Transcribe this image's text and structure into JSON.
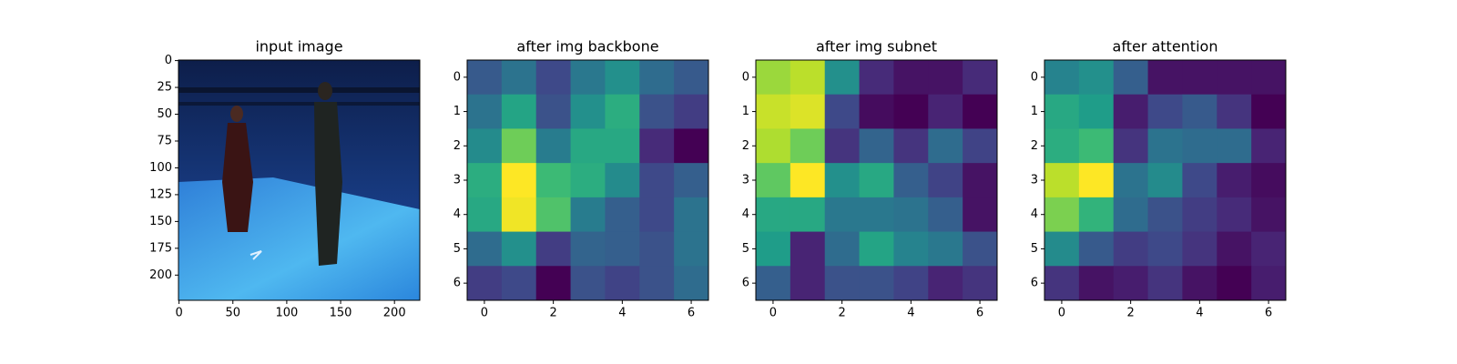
{
  "chart_data": [
    {
      "type": "image",
      "title": "input image",
      "xlim": [
        -0.5,
        223.5
      ],
      "ylim": [
        223.5,
        -0.5
      ],
      "xticks": [
        0,
        50,
        100,
        150,
        200
      ],
      "yticks": [
        0,
        25,
        50,
        75,
        100,
        125,
        150,
        175,
        200
      ]
    },
    {
      "type": "heatmap",
      "title": "after img backbone",
      "colormap": "viridis",
      "xlim": [
        -0.5,
        6.5
      ],
      "ylim": [
        6.5,
        -0.5
      ],
      "xticks": [
        0,
        2,
        4,
        6
      ],
      "yticks": [
        0,
        1,
        2,
        3,
        4,
        5,
        6
      ],
      "z": [
        [
          0.28,
          0.38,
          0.22,
          0.4,
          0.5,
          0.35,
          0.28
        ],
        [
          0.38,
          0.58,
          0.25,
          0.5,
          0.62,
          0.25,
          0.18
        ],
        [
          0.48,
          0.78,
          0.42,
          0.6,
          0.6,
          0.12,
          0.0
        ],
        [
          0.62,
          1.0,
          0.68,
          0.62,
          0.48,
          0.22,
          0.3
        ],
        [
          0.6,
          0.98,
          0.72,
          0.42,
          0.3,
          0.22,
          0.38
        ],
        [
          0.35,
          0.5,
          0.18,
          0.32,
          0.3,
          0.25,
          0.38
        ],
        [
          0.18,
          0.22,
          0.0,
          0.25,
          0.2,
          0.25,
          0.35
        ]
      ]
    },
    {
      "type": "heatmap",
      "title": "after img subnet",
      "colormap": "viridis",
      "xlim": [
        -0.5,
        6.5
      ],
      "ylim": [
        6.5,
        -0.5
      ],
      "xticks": [
        0,
        2,
        4,
        6
      ],
      "yticks": [
        0,
        1,
        2,
        3,
        4,
        5,
        6
      ],
      "z": [
        [
          0.85,
          0.9,
          0.5,
          0.12,
          0.05,
          0.05,
          0.12
        ],
        [
          0.92,
          0.95,
          0.22,
          0.03,
          0.0,
          0.1,
          0.0
        ],
        [
          0.88,
          0.78,
          0.15,
          0.32,
          0.15,
          0.35,
          0.2
        ],
        [
          0.75,
          1.0,
          0.5,
          0.6,
          0.3,
          0.2,
          0.05
        ],
        [
          0.6,
          0.6,
          0.4,
          0.4,
          0.38,
          0.3,
          0.05
        ],
        [
          0.55,
          0.1,
          0.35,
          0.58,
          0.45,
          0.4,
          0.25
        ],
        [
          0.3,
          0.1,
          0.25,
          0.25,
          0.2,
          0.1,
          0.15
        ]
      ]
    },
    {
      "type": "heatmap",
      "title": "after attention",
      "colormap": "viridis",
      "xlim": [
        -0.5,
        6.5
      ],
      "ylim": [
        6.5,
        -0.5
      ],
      "xticks": [
        0,
        2,
        4,
        6
      ],
      "yticks": [
        0,
        1,
        2,
        3,
        4,
        5,
        6
      ],
      "z": [
        [
          0.45,
          0.5,
          0.3,
          0.05,
          0.05,
          0.05,
          0.05
        ],
        [
          0.6,
          0.55,
          0.08,
          0.22,
          0.28,
          0.15,
          0.0
        ],
        [
          0.62,
          0.68,
          0.15,
          0.38,
          0.35,
          0.35,
          0.1
        ],
        [
          0.9,
          1.0,
          0.38,
          0.48,
          0.22,
          0.08,
          0.03
        ],
        [
          0.8,
          0.65,
          0.35,
          0.25,
          0.18,
          0.12,
          0.05
        ],
        [
          0.48,
          0.28,
          0.18,
          0.22,
          0.15,
          0.05,
          0.1
        ],
        [
          0.15,
          0.05,
          0.08,
          0.15,
          0.05,
          0.0,
          0.08
        ]
      ]
    }
  ]
}
